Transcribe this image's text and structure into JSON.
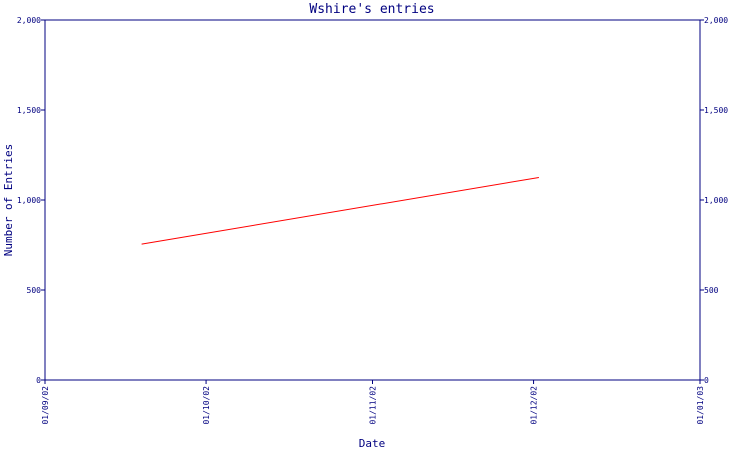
{
  "chart_data": {
    "type": "line",
    "title": "Wshire's entries",
    "xlabel": "Date",
    "ylabel": "Number of Entries",
    "x_ticks": [
      "01/09/02",
      "01/10/02",
      "01/11/02",
      "01/12/02",
      "01/01/03"
    ],
    "y_ticks": [
      "0",
      "500",
      "1,000",
      "1,500",
      "2,000"
    ],
    "ylim": [
      0,
      2000
    ],
    "xlim": [
      "2002-09-01",
      "2003-01-01"
    ],
    "grid": false,
    "series": [
      {
        "x": [
          "2002-09-19",
          "2002-12-02"
        ],
        "values": [
          755,
          1125
        ]
      }
    ],
    "colors": {
      "axis": "#000080",
      "line": "#ff0000",
      "background": "#ffffff"
    }
  }
}
